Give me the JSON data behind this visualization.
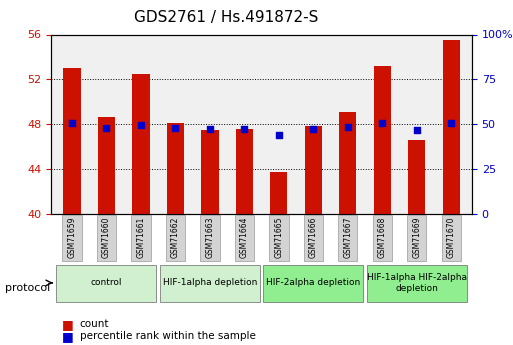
{
  "title": "GDS2761 / Hs.491872-S",
  "samples": [
    "GSM71659",
    "GSM71660",
    "GSM71661",
    "GSM71662",
    "GSM71663",
    "GSM71664",
    "GSM71665",
    "GSM71666",
    "GSM71667",
    "GSM71668",
    "GSM71669",
    "GSM71670"
  ],
  "count_values": [
    53.0,
    48.6,
    52.5,
    48.1,
    47.5,
    47.6,
    43.7,
    47.8,
    49.1,
    53.2,
    46.6,
    55.5
  ],
  "percentile_values": [
    50.5,
    47.9,
    49.3,
    47.7,
    47.3,
    47.4,
    44.0,
    47.6,
    48.2,
    50.8,
    46.5,
    50.7
  ],
  "ylim_left": [
    40,
    56
  ],
  "ylim_right": [
    0,
    100
  ],
  "yticks_left": [
    40,
    44,
    48,
    52,
    56
  ],
  "yticks_right": [
    0,
    25,
    50,
    75,
    100
  ],
  "bar_color": "#cc1100",
  "dot_color": "#0000cc",
  "bar_width": 0.5,
  "protocol_groups": [
    {
      "label": "control",
      "start": 0,
      "end": 2,
      "color": "#d0f0d0"
    },
    {
      "label": "HIF-1alpha depletion",
      "start": 3,
      "end": 5,
      "color": "#d0f0d0"
    },
    {
      "label": "HIF-2alpha depletion",
      "start": 6,
      "end": 8,
      "color": "#90ee90"
    },
    {
      "label": "HIF-1alpha HIF-2alpha\ndepletion",
      "start": 9,
      "end": 11,
      "color": "#90ee90"
    }
  ],
  "grid_color": "#000000",
  "grid_style": "dotted",
  "bg_color": "#ffffff",
  "plot_bg_color": "#f0f0f0",
  "xlabel_color": "#cc1100",
  "ylabel_left_color": "#cc1100",
  "ylabel_right_color": "#0000cc",
  "tick_label_box_color": "#d3d3d3",
  "legend_count_color": "#cc1100",
  "legend_pct_color": "#0000cc"
}
